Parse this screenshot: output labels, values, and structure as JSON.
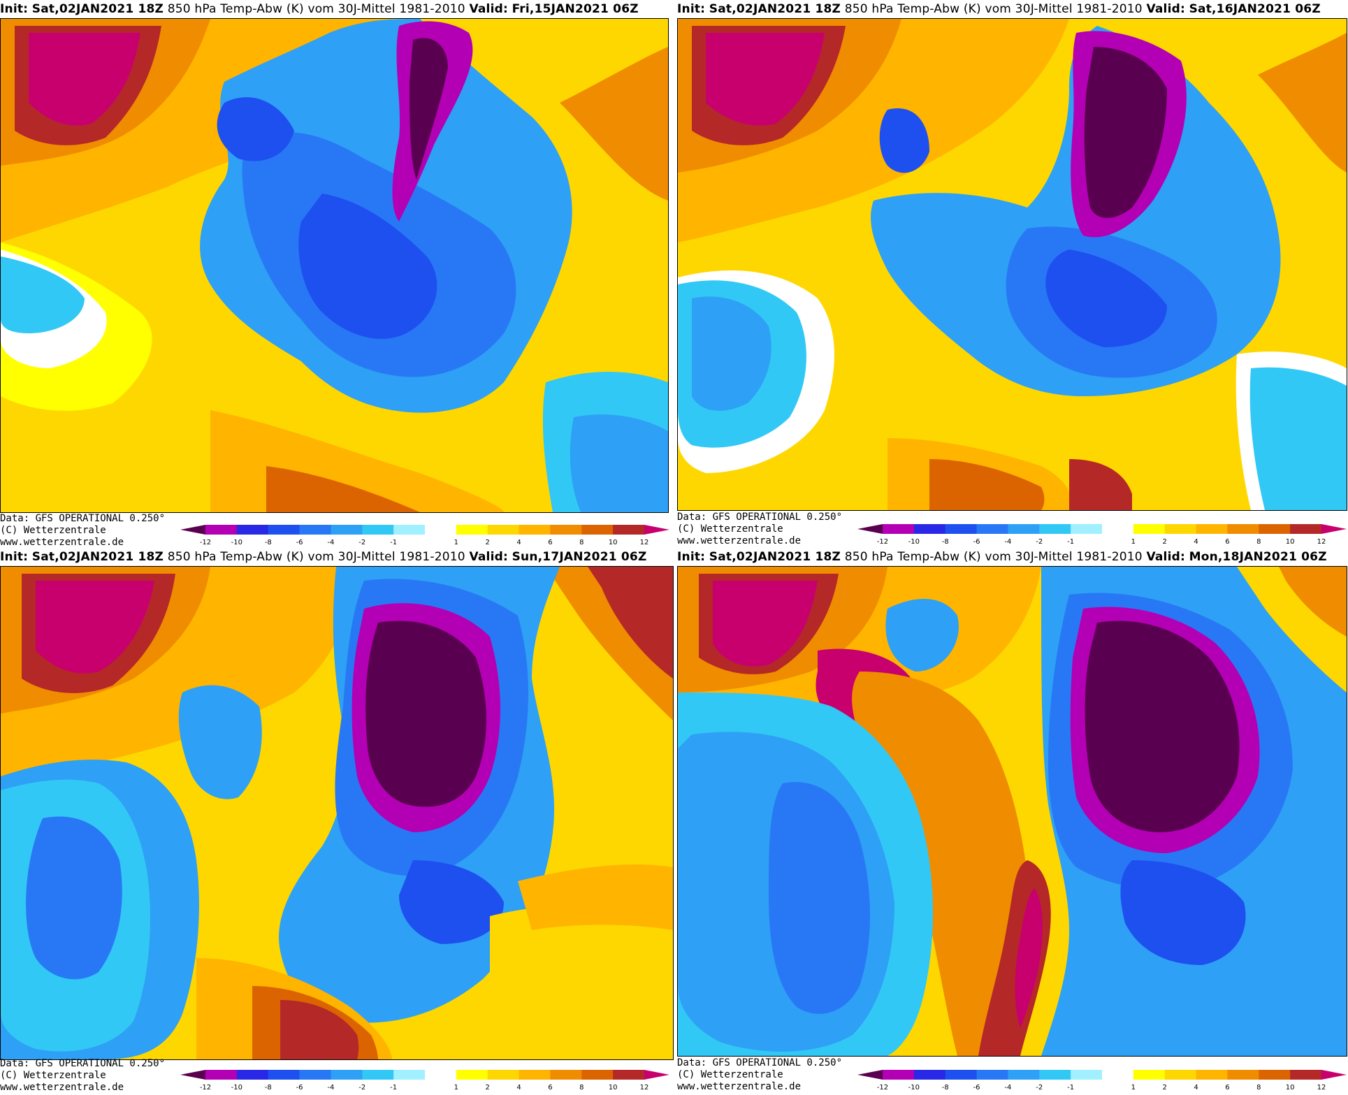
{
  "header": {
    "init_label": "Init:",
    "init_value": "Sat,02JAN2021 18Z",
    "title": "850 hPa Temp-Abw (K) vom 30J-Mittel 1981-2010",
    "valid_label": "Valid:"
  },
  "footer": {
    "data_line": "Data: GFS OPERATIONAL 0.250°",
    "copyright_line": "(C) Wetterzentrale",
    "url_line": "www.wetterzentrale.de"
  },
  "panels": [
    {
      "id": "p1",
      "valid": "Fri,15JAN2021 06Z"
    },
    {
      "id": "p2",
      "valid": "Sat,16JAN2021 06Z"
    },
    {
      "id": "p3",
      "valid": "Sun,17JAN2021 06Z"
    },
    {
      "id": "p4",
      "valid": "Mon,18JAN2021 06Z"
    }
  ],
  "legend": {
    "ticks": [
      "-12",
      "-10",
      "-8",
      "-6",
      "-4",
      "-2",
      "-1",
      "1",
      "2",
      "4",
      "6",
      "8",
      "10",
      "12"
    ],
    "colors": {
      "below_min": "#5a0050",
      "m12": "#b400b4",
      "m10": "#2828e6",
      "m8": "#1e50f0",
      "m6": "#2878f5",
      "m4": "#2ea0f5",
      "m2": "#32c8f5",
      "m1": "#a0f0ff",
      "zero": "#ffffff",
      "p1": "#ffff00",
      "p2": "#ffd700",
      "p4": "#ffb400",
      "p6": "#f08c00",
      "p8": "#dc6400",
      "p10": "#b42828",
      "above_max": "#c8006e"
    }
  }
}
